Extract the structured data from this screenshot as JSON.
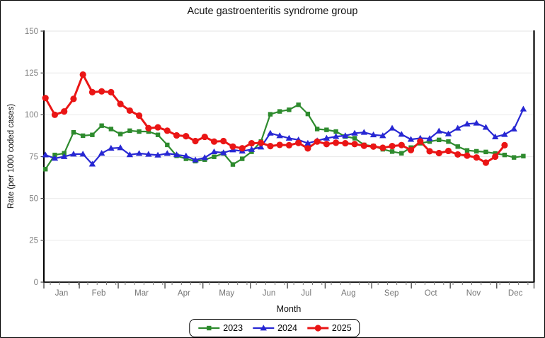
{
  "window": {
    "background": "#ffffff",
    "border_color": "#000000"
  },
  "chart": {
    "title": "Acute gastroenteritis syndrome group",
    "x_label": "Month",
    "y_label": "Rate (per 1000 coded cases)",
    "tick_label_color": "#808080",
    "month_label_color": "#757575",
    "grid_color": "#ebebeb",
    "axis_color": "#000000"
  },
  "chart_data": {
    "type": "line",
    "title": "Acute gastroenteritis syndrome group",
    "xlabel": "Month",
    "ylabel": "Rate (per 1000 coded cases)",
    "ylim": [
      0,
      150
    ],
    "y_ticks": [
      0,
      25,
      50,
      75,
      100,
      125,
      150
    ],
    "x_unit": "week (weekly data points across one year)",
    "months": [
      "Jan",
      "Feb",
      "Mar",
      "Apr",
      "May",
      "Jun",
      "Jul",
      "Aug",
      "Sep",
      "Oct",
      "Nov",
      "Dec"
    ],
    "month_boundaries_weeks": [
      0,
      3.76,
      7.89,
      12.85,
      16.88,
      21.92,
      25.85,
      29.85,
      34.79,
      39.0,
      43.13,
      48.06,
      52.02
    ],
    "grid": "horizontal-only",
    "legend_position": "bottom-center",
    "series": [
      {
        "name": "2023",
        "color": "#2e8b2e",
        "marker": "square",
        "values": [
          67.5,
          76,
          77,
          89.5,
          87.5,
          88,
          93.5,
          91.5,
          88.5,
          90.5,
          90,
          90,
          88,
          82,
          75.5,
          73.7,
          72.3,
          73.2,
          74.9,
          76.9,
          70.3,
          73.7,
          77.9,
          84,
          100.3,
          102,
          103,
          106,
          100.5,
          91.5,
          91,
          90,
          87,
          86,
          82,
          81.3,
          79.4,
          78,
          77,
          80.4,
          83,
          84,
          85,
          84,
          81,
          78.7,
          78.2,
          77.8,
          76.9,
          76,
          74.5,
          75.3
        ]
      },
      {
        "name": "2024",
        "color": "#2727d3",
        "marker": "triangle",
        "values": [
          76,
          74,
          75,
          76.5,
          76.5,
          70.5,
          77,
          80,
          80.3,
          76.1,
          76.9,
          76.4,
          75.9,
          76.9,
          76.1,
          75.4,
          73,
          74.4,
          77.9,
          77.3,
          79,
          78.3,
          79.3,
          80.7,
          89,
          87.5,
          86,
          85,
          83,
          84.5,
          86,
          87,
          87.5,
          89,
          89.5,
          88,
          87.5,
          92,
          88.3,
          85.3,
          86,
          85.8,
          90.3,
          88.6,
          92,
          94.5,
          95,
          92.5,
          86.8,
          88.2,
          91.5,
          103.4
        ]
      },
      {
        "name": "2025",
        "color": "#ea1515",
        "marker": "circle",
        "values": [
          110,
          100,
          102,
          109.5,
          124,
          113.5,
          114,
          113.5,
          106.5,
          102.5,
          99.5,
          92,
          92.5,
          90.5,
          87.7,
          87.2,
          84.3,
          86.8,
          84,
          84.3,
          81,
          80,
          83,
          83.2,
          81.3,
          82,
          81.8,
          83.2,
          79.9,
          84,
          82.5,
          83.3,
          83,
          82.5,
          81.5,
          81,
          80.3,
          81.3,
          81.9,
          78.9,
          84.1,
          78.2,
          77.1,
          78.4,
          76.3,
          75.6,
          74.5,
          71.4,
          75,
          81.8
        ]
      }
    ]
  },
  "legend": {
    "items": [
      {
        "label": "2023"
      },
      {
        "label": "2024"
      },
      {
        "label": "2025"
      }
    ]
  }
}
